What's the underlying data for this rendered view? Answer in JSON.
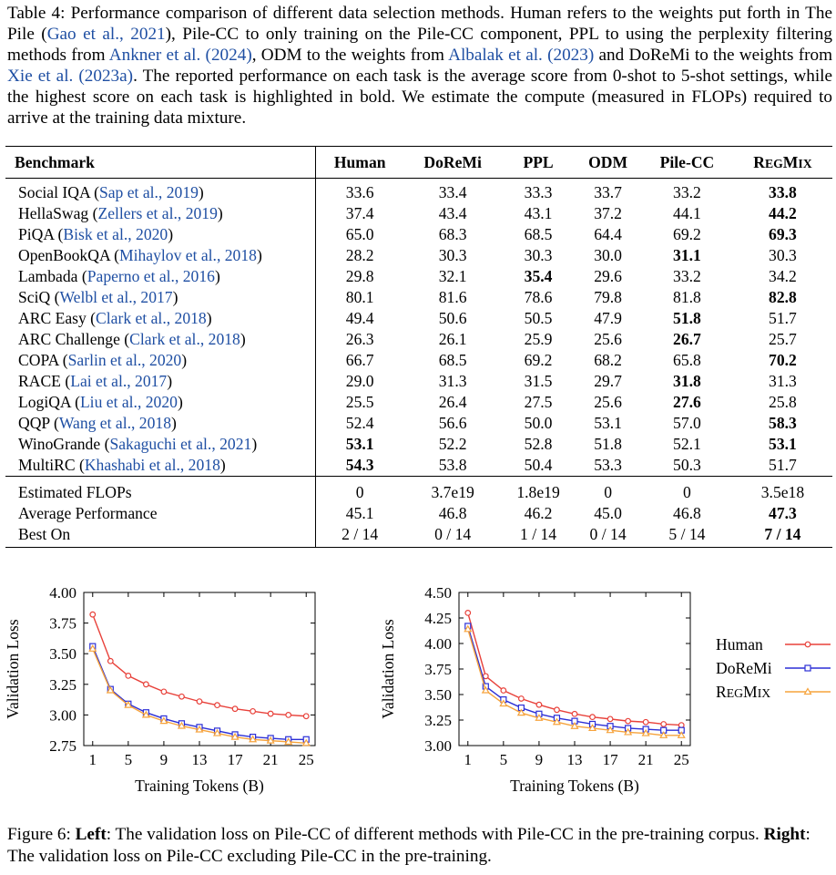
{
  "caption": {
    "label": "Table 4:",
    "p1": " Performance comparison of different data selection methods. Human refers to the weights put forth in The Pile (",
    "c1": "Gao et al., 2021",
    "p2": "), Pile-CC to only training on the Pile-CC component, PPL to using the perplexity filtering methods from ",
    "c2": "Ankner et al. (2024)",
    "p3": ", ODM to the weights from ",
    "c3": "Albalak et al. (2023)",
    "p4": " and DoReMi to the weights from ",
    "c4": "Xie et al. (2023a)",
    "p5": ". The reported performance on each task is the average score from 0-shot to 5-shot settings, while the highest score on each task is highlighted in bold. We estimate the compute (measured in FLOPs) required to arrive at the training data mixture."
  },
  "table": {
    "headers": [
      "Benchmark",
      "Human",
      "DoReMi",
      "PPL",
      "ODM",
      "Pile-CC"
    ],
    "regmix_header": {
      "big1": "R",
      "small1": "EG",
      "big2": "M",
      "small2": "IX"
    },
    "rows": [
      {
        "name": "Social IQA",
        "cite": "Sap et al., 2019",
        "values": [
          "33.6",
          "33.4",
          "33.3",
          "33.7",
          "33.2",
          "33.8"
        ],
        "bold": 5
      },
      {
        "name": "HellaSwag",
        "cite": "Zellers et al., 2019",
        "values": [
          "37.4",
          "43.4",
          "43.1",
          "37.2",
          "44.1",
          "44.2"
        ],
        "bold": 5
      },
      {
        "name": "PiQA",
        "cite": "Bisk et al., 2020",
        "values": [
          "65.0",
          "68.3",
          "68.5",
          "64.4",
          "69.2",
          "69.3"
        ],
        "bold": 5
      },
      {
        "name": "OpenBookQA",
        "cite": "Mihaylov et al., 2018",
        "values": [
          "28.2",
          "30.3",
          "30.3",
          "30.0",
          "31.1",
          "30.3"
        ],
        "bold": 4
      },
      {
        "name": "Lambada",
        "cite": "Paperno et al., 2016",
        "values": [
          "29.8",
          "32.1",
          "35.4",
          "29.6",
          "33.2",
          "34.2"
        ],
        "bold": 2
      },
      {
        "name": "SciQ",
        "cite": "Welbl et al., 2017",
        "values": [
          "80.1",
          "81.6",
          "78.6",
          "79.8",
          "81.8",
          "82.8"
        ],
        "bold": 5
      },
      {
        "name": "ARC Easy",
        "cite": "Clark et al., 2018",
        "values": [
          "49.4",
          "50.6",
          "50.5",
          "47.9",
          "51.8",
          "51.7"
        ],
        "bold": 4
      },
      {
        "name": "ARC Challenge",
        "cite": "Clark et al., 2018",
        "values": [
          "26.3",
          "26.1",
          "25.9",
          "25.6",
          "26.7",
          "25.7"
        ],
        "bold": 4
      },
      {
        "name": "COPA",
        "cite": "Sarlin et al., 2020",
        "values": [
          "66.7",
          "68.5",
          "69.2",
          "68.2",
          "65.8",
          "70.2"
        ],
        "bold": 5
      },
      {
        "name": "RACE",
        "cite": "Lai et al., 2017",
        "values": [
          "29.0",
          "31.3",
          "31.5",
          "29.7",
          "31.8",
          "31.3"
        ],
        "bold": 4
      },
      {
        "name": "LogiQA",
        "cite": "Liu et al., 2020",
        "values": [
          "25.5",
          "26.4",
          "27.5",
          "25.6",
          "27.6",
          "25.8"
        ],
        "bold": 4
      },
      {
        "name": "QQP",
        "cite": "Wang et al., 2018",
        "values": [
          "52.4",
          "56.6",
          "50.0",
          "53.1",
          "57.0",
          "58.3"
        ],
        "bold": 5
      },
      {
        "name": "WinoGrande",
        "cite": "Sakaguchi et al., 2021",
        "values": [
          "53.1",
          "52.2",
          "52.8",
          "51.8",
          "52.1",
          "53.1"
        ],
        "bold": [
          0,
          5
        ]
      },
      {
        "name": "MultiRC",
        "cite": "Khashabi et al., 2018",
        "values": [
          "54.3",
          "53.8",
          "50.4",
          "53.3",
          "50.3",
          "51.7"
        ],
        "bold": 0
      }
    ],
    "summary": [
      {
        "name": "Estimated FLOPs",
        "values": [
          "0",
          "3.7e19",
          "1.8e19",
          "0",
          "0",
          "3.5e18"
        ],
        "bold": -1
      },
      {
        "name": "Average Performance",
        "values": [
          "45.1",
          "46.8",
          "46.2",
          "45.0",
          "46.8",
          "47.3"
        ],
        "bold": 5
      },
      {
        "name": "Best On",
        "values": [
          "2 / 14",
          "0 / 14",
          "1 / 14",
          "0 / 14",
          "5 / 14",
          "7 / 14"
        ],
        "bold": 5
      }
    ]
  },
  "chart_data": [
    {
      "type": "line",
      "title": "",
      "xlabel": "Training Tokens (B)",
      "ylabel": "Validation Loss",
      "x": [
        1,
        3,
        5,
        7,
        9,
        11,
        13,
        15,
        17,
        19,
        21,
        23,
        25
      ],
      "xticks": [
        "1",
        "5",
        "9",
        "13",
        "17",
        "21",
        "25"
      ],
      "yticks": [
        "2.75",
        "3.00",
        "3.25",
        "3.50",
        "3.75",
        "4.00"
      ],
      "ylim": [
        2.75,
        4.0
      ],
      "series": [
        {
          "name": "Human",
          "color": "#e8413a",
          "values": [
            3.82,
            3.44,
            3.32,
            3.25,
            3.19,
            3.15,
            3.11,
            3.08,
            3.05,
            3.03,
            3.01,
            3.0,
            2.99
          ]
        },
        {
          "name": "DoReMi",
          "color": "#2c2fd6",
          "values": [
            3.56,
            3.21,
            3.09,
            3.02,
            2.97,
            2.93,
            2.9,
            2.87,
            2.84,
            2.82,
            2.81,
            2.8,
            2.8
          ]
        },
        {
          "name": "RegMix",
          "color": "#f6a33c",
          "values": [
            3.54,
            3.2,
            3.08,
            3.0,
            2.95,
            2.91,
            2.88,
            2.85,
            2.82,
            2.8,
            2.79,
            2.78,
            2.77
          ]
        }
      ]
    },
    {
      "type": "line",
      "title": "",
      "xlabel": "Training Tokens (B)",
      "ylabel": "Validation Loss",
      "x": [
        1,
        3,
        5,
        7,
        9,
        11,
        13,
        15,
        17,
        19,
        21,
        23,
        25
      ],
      "xticks": [
        "1",
        "5",
        "9",
        "13",
        "17",
        "21",
        "25"
      ],
      "yticks": [
        "3.00",
        "3.25",
        "3.50",
        "3.75",
        "4.00",
        "4.25",
        "4.50"
      ],
      "ylim": [
        3.0,
        4.5
      ],
      "series": [
        {
          "name": "Human",
          "color": "#e8413a",
          "values": [
            4.3,
            3.68,
            3.54,
            3.46,
            3.4,
            3.35,
            3.31,
            3.28,
            3.26,
            3.24,
            3.23,
            3.21,
            3.2
          ]
        },
        {
          "name": "DoReMi",
          "color": "#2c2fd6",
          "values": [
            4.17,
            3.58,
            3.45,
            3.37,
            3.31,
            3.27,
            3.24,
            3.21,
            3.19,
            3.17,
            3.16,
            3.15,
            3.15
          ]
        },
        {
          "name": "RegMix",
          "color": "#f6a33c",
          "values": [
            4.14,
            3.54,
            3.41,
            3.32,
            3.27,
            3.23,
            3.19,
            3.17,
            3.15,
            3.13,
            3.12,
            3.1,
            3.1
          ]
        }
      ]
    }
  ],
  "legend": {
    "human": "Human",
    "doremi": "DoReMi",
    "regmix": {
      "big1": "R",
      "small1": "EG",
      "big2": "M",
      "small2": "IX"
    }
  },
  "fig_caption": {
    "label": "Figure 6:",
    "left": "Left",
    "left_text": ": The validation loss on Pile-CC of different methods with Pile-CC in the pre-training corpus. ",
    "right": "Right",
    "right_text": ": The validation loss on Pile-CC excluding Pile-CC in the pre-training."
  }
}
